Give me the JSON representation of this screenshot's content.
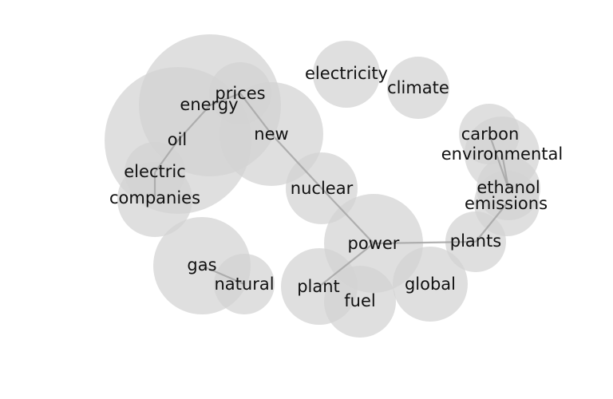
{
  "diagram": {
    "type": "word-cooccurrence-network",
    "bubble_color": "#d3d3d3",
    "edge_color": "#a9a9a9",
    "nodes": [
      {
        "id": "energy",
        "label": "energy"
      },
      {
        "id": "oil",
        "label": "oil"
      },
      {
        "id": "prices",
        "label": "prices"
      },
      {
        "id": "new",
        "label": "new"
      },
      {
        "id": "electric",
        "label": "electric"
      },
      {
        "id": "companies",
        "label": "companies"
      },
      {
        "id": "electricity",
        "label": "electricity"
      },
      {
        "id": "climate",
        "label": "climate"
      },
      {
        "id": "nuclear",
        "label": "nuclear"
      },
      {
        "id": "carbon",
        "label": "carbon"
      },
      {
        "id": "environmental",
        "label": "environmental"
      },
      {
        "id": "ethanol",
        "label": "ethanol"
      },
      {
        "id": "emissions",
        "label": "emissions"
      },
      {
        "id": "power",
        "label": "power"
      },
      {
        "id": "plants",
        "label": "plants"
      },
      {
        "id": "gas",
        "label": "gas"
      },
      {
        "id": "natural",
        "label": "natural"
      },
      {
        "id": "plant",
        "label": "plant"
      },
      {
        "id": "fuel",
        "label": "fuel"
      },
      {
        "id": "global",
        "label": "global"
      }
    ],
    "edges": [
      {
        "source": "energy",
        "target": "prices"
      },
      {
        "source": "energy",
        "target": "oil"
      },
      {
        "source": "prices",
        "target": "new"
      },
      {
        "source": "new",
        "target": "nuclear"
      },
      {
        "source": "oil",
        "target": "electric"
      },
      {
        "source": "electric",
        "target": "companies"
      },
      {
        "source": "nuclear",
        "target": "power"
      },
      {
        "source": "power",
        "target": "plants"
      },
      {
        "source": "power",
        "target": "plant"
      },
      {
        "source": "plants",
        "target": "emissions"
      },
      {
        "source": "carbon",
        "target": "ethanol"
      },
      {
        "source": "environmental",
        "target": "ethanol"
      },
      {
        "source": "gas",
        "target": "natural"
      }
    ]
  }
}
